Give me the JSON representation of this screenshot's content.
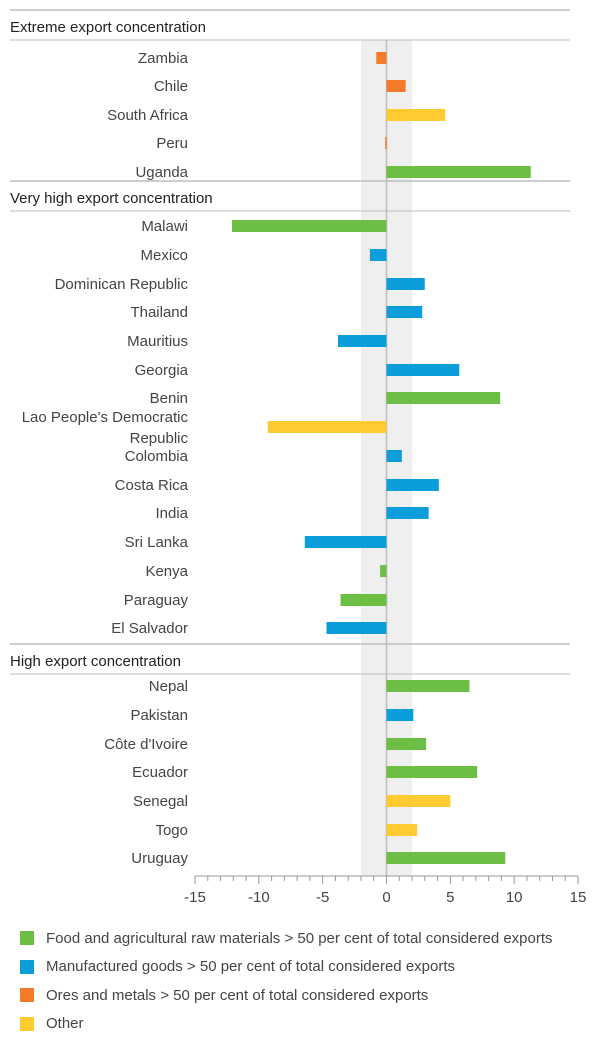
{
  "chart_data": {
    "type": "bar",
    "orientation": "horizontal",
    "xlim": [
      -15,
      15
    ],
    "x_ticks": [
      "-15",
      "-10",
      "-5",
      "0",
      "5",
      "10",
      "15"
    ],
    "shaded_band": [
      -2,
      2
    ],
    "legend_position": "bottom-left",
    "colors": {
      "food": "#6CBE45",
      "manufactured": "#0C9EDB",
      "ores": "#F47B2A",
      "other": "#FFCB31"
    },
    "legend": [
      {
        "key": "food",
        "label": "Food and agricultural raw materials > 50 per cent of total considered exports"
      },
      {
        "key": "manufactured",
        "label": "Manufactured goods > 50 per cent of total considered exports"
      },
      {
        "key": "ores",
        "label": "Ores and metals > 50 per cent of total considered exports"
      },
      {
        "key": "other",
        "label": "Other"
      }
    ],
    "groups": [
      {
        "title": "Extreme export concentration",
        "items": [
          {
            "country": [
              "Zambia"
            ],
            "value": -0.8,
            "category": "ores"
          },
          {
            "country": [
              "Chile"
            ],
            "value": 1.5,
            "category": "ores"
          },
          {
            "country": [
              "South Africa"
            ],
            "value": 4.6,
            "category": "other"
          },
          {
            "country": [
              "Peru"
            ],
            "value": -0.1,
            "category": "ores"
          },
          {
            "country": [
              "Uganda"
            ],
            "value": 11.3,
            "category": "food"
          }
        ]
      },
      {
        "title": "Very high export concentration",
        "items": [
          {
            "country": [
              "Malawi"
            ],
            "value": -12.1,
            "category": "food"
          },
          {
            "country": [
              "Mexico"
            ],
            "value": -1.3,
            "category": "manufactured"
          },
          {
            "country": [
              "Dominican Republic"
            ],
            "value": 3.0,
            "category": "manufactured"
          },
          {
            "country": [
              "Thailand"
            ],
            "value": 2.8,
            "category": "manufactured"
          },
          {
            "country": [
              "Mauritius"
            ],
            "value": -3.8,
            "category": "manufactured"
          },
          {
            "country": [
              "Georgia"
            ],
            "value": 5.7,
            "category": "manufactured"
          },
          {
            "country": [
              "Benin"
            ],
            "value": 8.9,
            "category": "food"
          },
          {
            "country": [
              "Lao People's Democratic",
              "Republic"
            ],
            "value": -9.3,
            "category": "other"
          },
          {
            "country": [
              "Colombia"
            ],
            "value": 1.2,
            "category": "manufactured"
          },
          {
            "country": [
              "Costa Rica"
            ],
            "value": 4.1,
            "category": "manufactured"
          },
          {
            "country": [
              "India"
            ],
            "value": 3.3,
            "category": "manufactured"
          },
          {
            "country": [
              "Sri Lanka"
            ],
            "value": -6.4,
            "category": "manufactured"
          },
          {
            "country": [
              "Kenya"
            ],
            "value": -0.5,
            "category": "food"
          },
          {
            "country": [
              "Paraguay"
            ],
            "value": -3.6,
            "category": "food"
          },
          {
            "country": [
              "El Salvador"
            ],
            "value": -4.7,
            "category": "manufactured"
          }
        ]
      },
      {
        "title": "High export concentration",
        "items": [
          {
            "country": [
              "Nepal"
            ],
            "value": 6.5,
            "category": "food"
          },
          {
            "country": [
              "Pakistan"
            ],
            "value": 2.1,
            "category": "manufactured"
          },
          {
            "country": [
              "Côte d'Ivoire"
            ],
            "value": 3.1,
            "category": "food"
          },
          {
            "country": [
              "Ecuador"
            ],
            "value": 7.1,
            "category": "food"
          },
          {
            "country": [
              "Senegal"
            ],
            "value": 5.0,
            "category": "other"
          },
          {
            "country": [
              "Togo"
            ],
            "value": 2.4,
            "category": "other"
          },
          {
            "country": [
              "Uruguay"
            ],
            "value": 9.3,
            "category": "food"
          }
        ]
      }
    ]
  }
}
